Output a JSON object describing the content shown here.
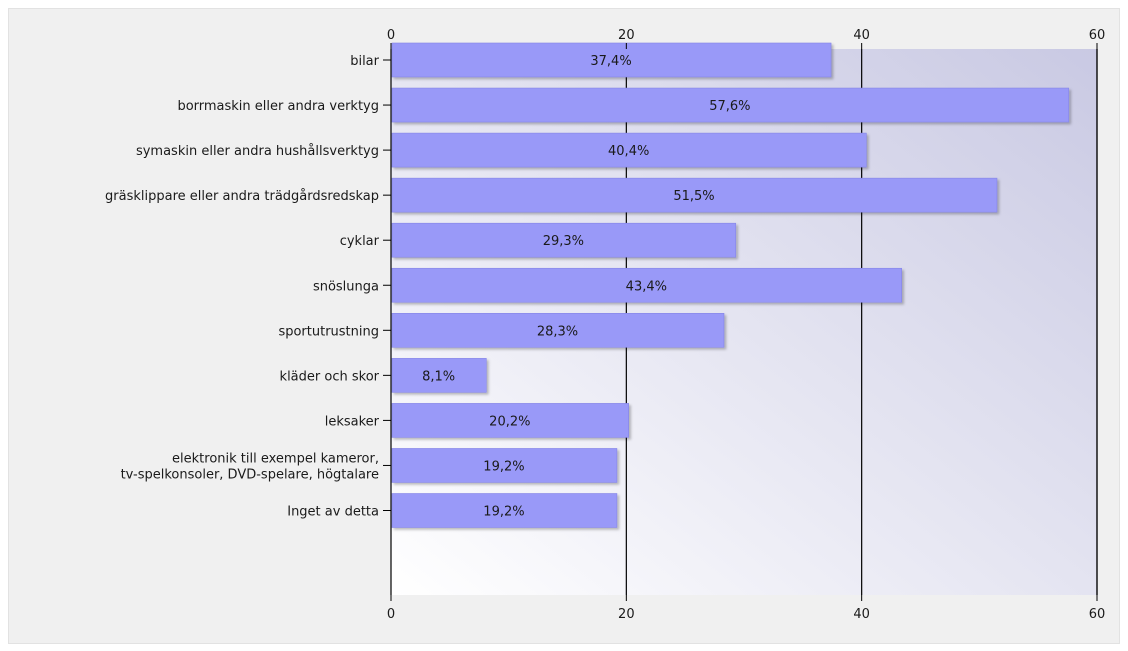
{
  "chart_data": {
    "type": "bar",
    "orientation": "horizontal",
    "categories": [
      [
        "bilar"
      ],
      [
        "borrmaskin eller andra verktyg"
      ],
      [
        "symaskin eller andra hushållsverktyg"
      ],
      [
        "gräsklippare eller andra trädgårdsredskap"
      ],
      [
        "cyklar"
      ],
      [
        "snöslunga"
      ],
      [
        "sportutrustning"
      ],
      [
        "kläder och skor"
      ],
      [
        "leksaker"
      ],
      [
        "elektronik till exempel kameror,",
        "tv-spelkonsoler, DVD-spelare, högtalare"
      ],
      [
        "Inget av detta"
      ]
    ],
    "values": [
      37.4,
      57.6,
      40.4,
      51.5,
      29.3,
      43.4,
      28.3,
      8.1,
      20.2,
      19.2,
      19.2
    ],
    "value_labels": [
      "37,4%",
      "57,6%",
      "40,4%",
      "51,5%",
      "29,3%",
      "43,4%",
      "28,3%",
      "8,1%",
      "20,2%",
      "19,2%",
      "19,2%"
    ],
    "xlim": [
      0,
      60
    ],
    "x_ticks": [
      0,
      20,
      40,
      60
    ],
    "x_tick_labels": [
      "0",
      "20",
      "40",
      "60"
    ],
    "axis_positions": [
      "top",
      "bottom"
    ],
    "grid": true,
    "legend": false,
    "colors": {
      "bar": "#9999f8",
      "bar_edge": "#8585e6",
      "plot_bg_dark": "#c9c9e3",
      "plot_bg_light": "#ffffff",
      "grid": "#000000"
    }
  }
}
